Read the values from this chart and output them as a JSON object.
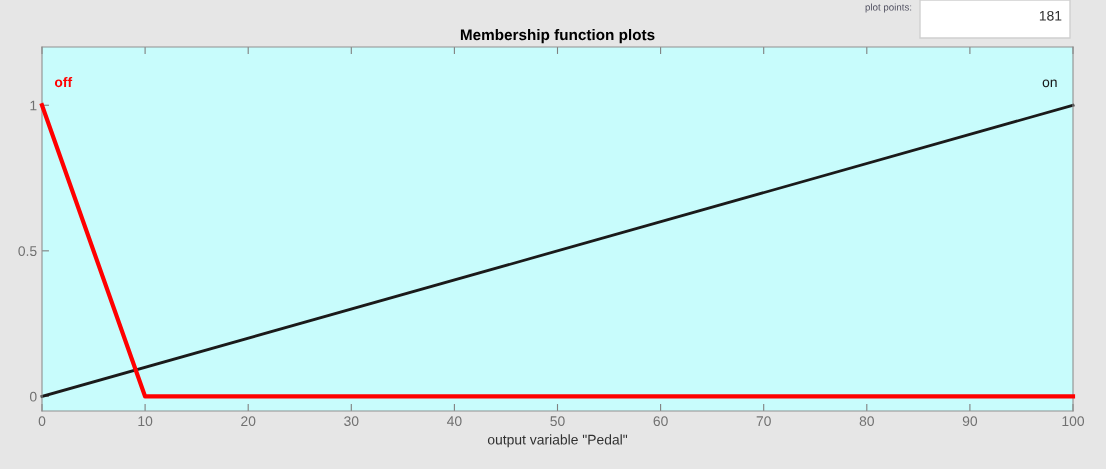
{
  "chart_data": {
    "type": "line",
    "title": "Membership function plots",
    "xlabel": "output variable \"Pedal\"",
    "xlim": [
      0,
      100
    ],
    "xticks": [
      0,
      10,
      20,
      30,
      40,
      50,
      60,
      70,
      80,
      90,
      100
    ],
    "ylim": [
      -0.05,
      1.2
    ],
    "yticks": [
      0,
      0.5,
      1
    ],
    "grid": false,
    "legend": false,
    "line_style": "solid",
    "series": [
      {
        "name": "off",
        "color": "#ff0000",
        "x": [
          0,
          10,
          100
        ],
        "values": [
          1,
          0,
          0
        ]
      },
      {
        "name": "on",
        "color": "#1a1a1a",
        "x": [
          0,
          100
        ],
        "values": [
          0,
          1
        ]
      }
    ],
    "annotations": [
      "plot points:",
      "181"
    ]
  }
}
